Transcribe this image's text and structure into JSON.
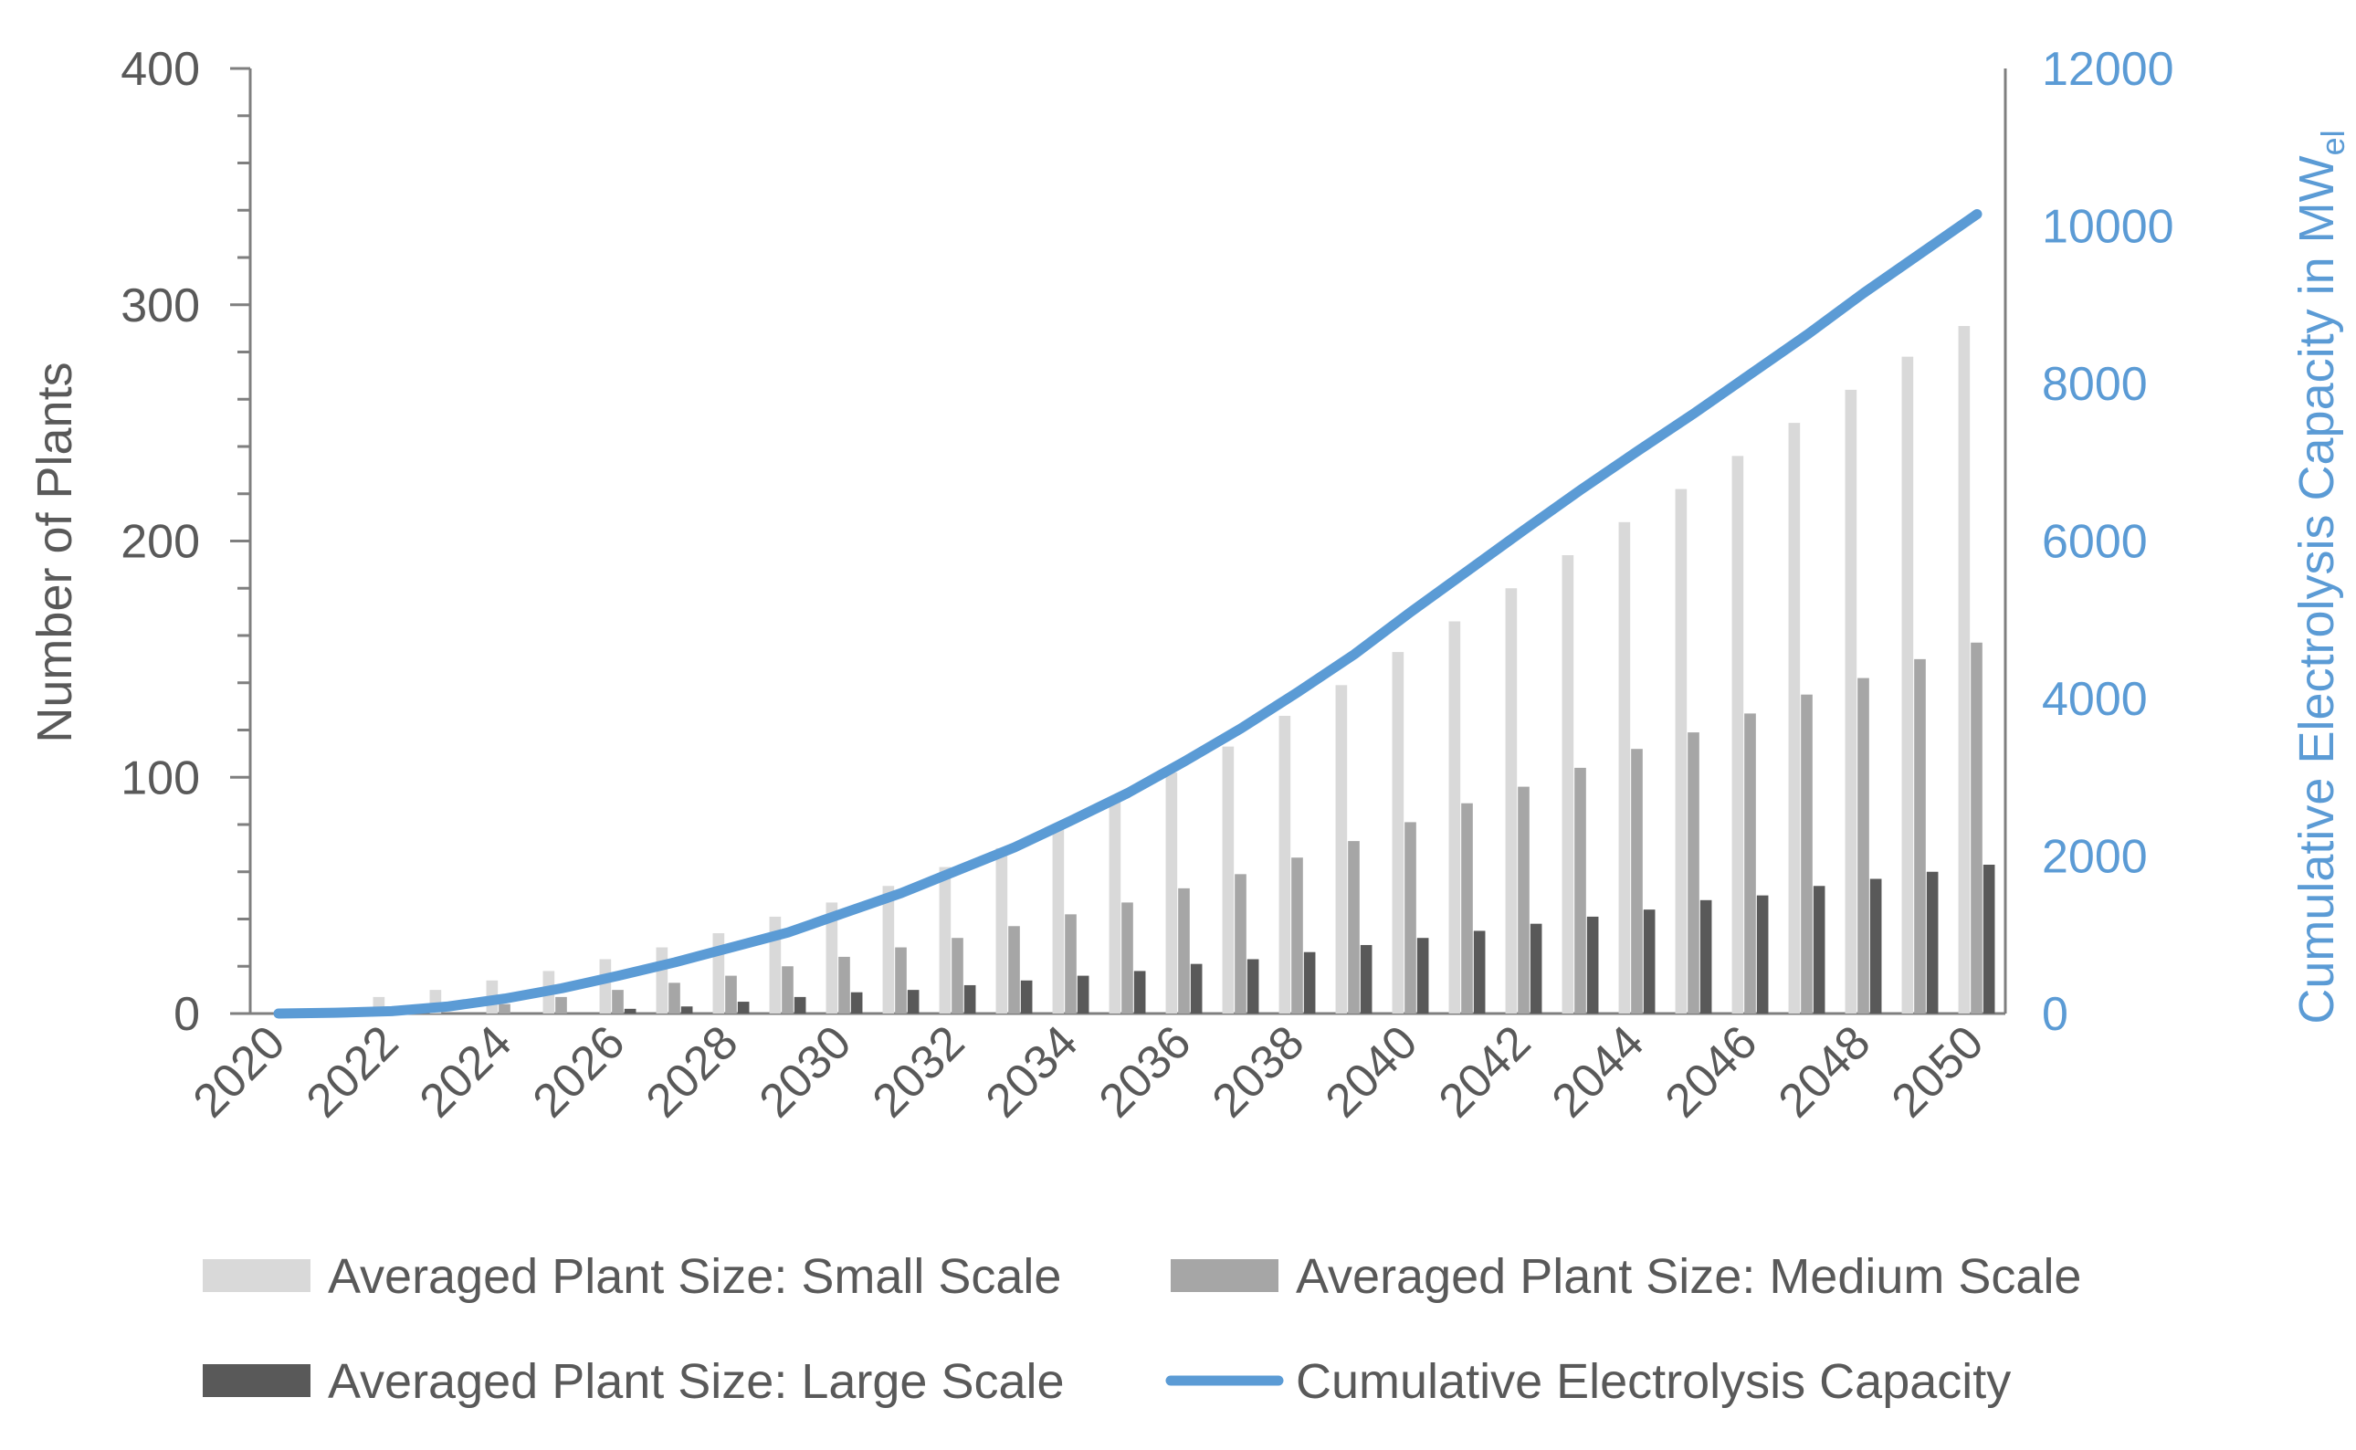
{
  "chart_data": {
    "type": "bar",
    "title": "",
    "xlabel": "",
    "ylabel": "Number of Plants",
    "y2label": {
      "main": "Cumulative Electrolysis Capacity in MW",
      "subscript": "el"
    },
    "ylim": [
      0,
      400
    ],
    "y2lim": [
      0,
      12000
    ],
    "yticks": [
      "0",
      "100",
      "200",
      "300",
      "400"
    ],
    "y2ticks": [
      "0",
      "2000",
      "4000",
      "6000",
      "8000",
      "10000",
      "12000"
    ],
    "xtick_labels": [
      "2020",
      "2022",
      "2024",
      "2026",
      "2028",
      "2030",
      "2032",
      "2034",
      "2036",
      "2038",
      "2040",
      "2042",
      "2044",
      "2046",
      "2048",
      "2050"
    ],
    "categories": [
      "2020",
      "2021",
      "2022",
      "2023",
      "2024",
      "2025",
      "2026",
      "2027",
      "2028",
      "2029",
      "2030",
      "2031",
      "2032",
      "2033",
      "2034",
      "2035",
      "2036",
      "2037",
      "2038",
      "2039",
      "2040",
      "2041",
      "2042",
      "2043",
      "2044",
      "2045",
      "2046",
      "2047",
      "2048",
      "2049",
      "2050"
    ],
    "series": [
      {
        "name": "Averaged Plant Size: Small Scale",
        "kind": "bar",
        "axis": "left",
        "color": "#d9d9d9",
        "values": [
          0,
          0,
          7,
          10,
          14,
          18,
          23,
          28,
          34,
          41,
          47,
          54,
          62,
          70,
          78,
          90,
          102,
          113,
          126,
          139,
          153,
          166,
          180,
          194,
          208,
          222,
          236,
          250,
          264,
          278,
          291
        ]
      },
      {
        "name": "Averaged Plant Size: Medium Scale",
        "kind": "bar",
        "axis": "left",
        "color": "#a6a6a6",
        "values": [
          0,
          0,
          0,
          0,
          4,
          7,
          10,
          13,
          16,
          20,
          24,
          28,
          32,
          37,
          42,
          47,
          53,
          59,
          66,
          73,
          81,
          89,
          96,
          104,
          112,
          119,
          127,
          135,
          142,
          150,
          157
        ]
      },
      {
        "name": "Averaged Plant Size: Large Scale",
        "kind": "bar",
        "axis": "left",
        "color": "#595959",
        "values": [
          0,
          0,
          0,
          0,
          0,
          0,
          2,
          3,
          5,
          7,
          9,
          10,
          12,
          14,
          16,
          18,
          21,
          23,
          26,
          29,
          32,
          35,
          38,
          41,
          44,
          48,
          50,
          54,
          57,
          60,
          63
        ]
      },
      {
        "name": "Cumulative Electrolysis Capacity",
        "kind": "line",
        "axis": "right",
        "color": "#5b9bd5",
        "values": [
          0,
          10,
          30,
          90,
          190,
          320,
          480,
          650,
          840,
          1030,
          1280,
          1530,
          1820,
          2110,
          2450,
          2800,
          3200,
          3620,
          4080,
          4560,
          5100,
          5620,
          6140,
          6650,
          7140,
          7620,
          8120,
          8620,
          9150,
          9650,
          10150
        ]
      }
    ],
    "legend": {
      "placement": "bottom",
      "columns": 2
    }
  }
}
